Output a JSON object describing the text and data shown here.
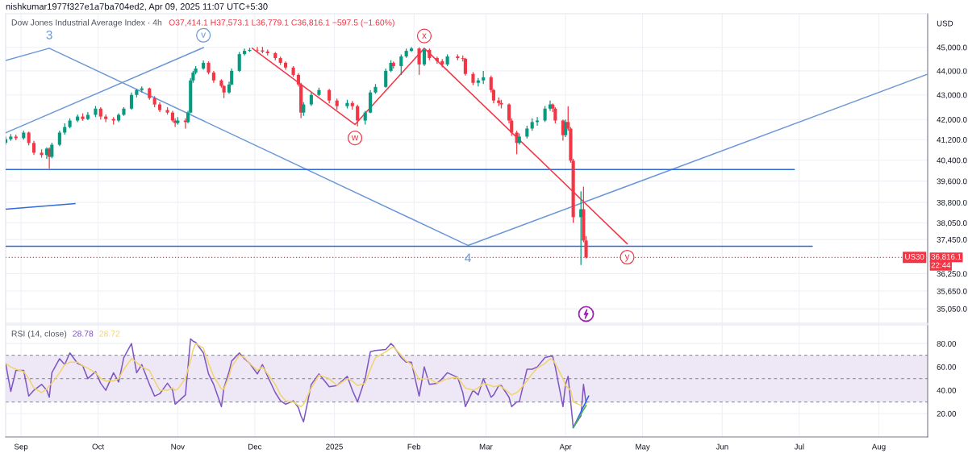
{
  "chart_data": [
    {
      "type": "candlestick",
      "title": "Dow Jones Industrial Average Index · 4h",
      "subtitle": "O37,414.1 H37,573.1 L36,779.1 C36,816.1 −597.5 (−1.60%)",
      "ylabel": "USD",
      "x": [
        "2024-08-26",
        "2024-08-28",
        "2024-08-30",
        "2024-09-02",
        "2024-09-04",
        "2024-09-06",
        "2024-09-09",
        "2024-09-11",
        "2024-09-12",
        "2024-09-13",
        "2024-09-16",
        "2024-09-18",
        "2024-09-20",
        "2024-09-23",
        "2024-09-25",
        "2024-09-27",
        "2024-09-30",
        "2024-10-02",
        "2024-10-04",
        "2024-10-07",
        "2024-10-09",
        "2024-10-11",
        "2024-10-14",
        "2024-10-16",
        "2024-10-18",
        "2024-10-21",
        "2024-10-23",
        "2024-10-25",
        "2024-10-28",
        "2024-10-30",
        "2024-10-31",
        "2024-11-01",
        "2024-11-04",
        "2024-11-05",
        "2024-11-06",
        "2024-11-07",
        "2024-11-08",
        "2024-11-11",
        "2024-11-13",
        "2024-11-15",
        "2024-11-18",
        "2024-11-19",
        "2024-11-21",
        "2024-11-22",
        "2024-11-25",
        "2024-11-27",
        "2024-11-29",
        "2024-12-02",
        "2024-12-04",
        "2024-12-06",
        "2024-12-09",
        "2024-12-11",
        "2024-12-13",
        "2024-12-16",
        "2024-12-18",
        "2024-12-19",
        "2024-12-20",
        "2024-12-23",
        "2024-12-26",
        "2024-12-30",
        "2025-01-02",
        "2025-01-06",
        "2025-01-08",
        "2025-01-10",
        "2025-01-13",
        "2025-01-15",
        "2025-01-17",
        "2025-01-21",
        "2025-01-23",
        "2025-01-24",
        "2025-01-27",
        "2025-01-29",
        "2025-01-31",
        "2025-02-03",
        "2025-02-05",
        "2025-02-07",
        "2025-02-10",
        "2025-02-12",
        "2025-02-14",
        "2025-02-18",
        "2025-02-20",
        "2025-02-21",
        "2025-02-24",
        "2025-02-26",
        "2025-02-28",
        "2025-03-03",
        "2025-03-04",
        "2025-03-06",
        "2025-03-07",
        "2025-03-10",
        "2025-03-11",
        "2025-03-13",
        "2025-03-14",
        "2025-03-17",
        "2025-03-19",
        "2025-03-21",
        "2025-03-24",
        "2025-03-26",
        "2025-03-27",
        "2025-03-28",
        "2025-03-31",
        "2025-04-01",
        "2025-04-02",
        "2025-04-03",
        "2025-04-04",
        "2025-04-07",
        "2025-04-08",
        "2025-04-09"
      ],
      "ohlc": [
        [
          41080,
          41320,
          41010,
          41220
        ],
        [
          41220,
          41420,
          41150,
          41320
        ],
        [
          41320,
          41400,
          41180,
          41260
        ],
        [
          41260,
          41560,
          41200,
          41480
        ],
        [
          41480,
          41520,
          40980,
          41070
        ],
        [
          41070,
          41150,
          40600,
          40690
        ],
        [
          40690,
          40820,
          40500,
          40600
        ],
        [
          40600,
          40900,
          40450,
          40850
        ],
        [
          40850,
          40900,
          40070,
          40530
        ],
        [
          40530,
          41080,
          40480,
          41000
        ],
        [
          41000,
          41560,
          40950,
          41480
        ],
        [
          41480,
          41850,
          41400,
          41700
        ],
        [
          41700,
          42050,
          41650,
          41960
        ],
        [
          41960,
          42200,
          41900,
          42120
        ],
        [
          42120,
          42250,
          41950,
          42020
        ],
        [
          42020,
          42300,
          41980,
          42190
        ],
        [
          42190,
          42550,
          42100,
          42440
        ],
        [
          42440,
          42500,
          42000,
          42120
        ],
        [
          42120,
          42200,
          41900,
          42020
        ],
        [
          42020,
          42100,
          41800,
          41960
        ],
        [
          41960,
          42250,
          41900,
          42190
        ],
        [
          42190,
          42500,
          42150,
          42440
        ],
        [
          42440,
          43100,
          42400,
          43000
        ],
        [
          43000,
          43250,
          42900,
          43200
        ],
        [
          43200,
          43350,
          43100,
          43270
        ],
        [
          43270,
          43300,
          42800,
          42870
        ],
        [
          42870,
          42950,
          42500,
          42610
        ],
        [
          42610,
          42700,
          42300,
          42380
        ],
        [
          42380,
          42500,
          42200,
          42280
        ],
        [
          42280,
          42350,
          41900,
          41960
        ],
        [
          41960,
          42050,
          41700,
          41860
        ],
        [
          41860,
          42100,
          41800,
          41960
        ],
        [
          41960,
          42050,
          41640,
          41900
        ],
        [
          41900,
          42350,
          41850,
          42280
        ],
        [
          42280,
          43700,
          42250,
          43600
        ],
        [
          43600,
          44000,
          43500,
          43930
        ],
        [
          43930,
          44200,
          43850,
          44100
        ],
        [
          44100,
          44440,
          44050,
          44340
        ],
        [
          44340,
          44400,
          43850,
          43930
        ],
        [
          43930,
          44000,
          43500,
          43600
        ],
        [
          43600,
          43650,
          43300,
          43370
        ],
        [
          43370,
          43400,
          42870,
          43100
        ],
        [
          43100,
          43550,
          43050,
          43430
        ],
        [
          43430,
          44100,
          43400,
          44000
        ],
        [
          44000,
          44800,
          43950,
          44710
        ],
        [
          44710,
          44950,
          44650,
          44850
        ],
        [
          44850,
          44980,
          44800,
          44890
        ],
        [
          44890,
          45020,
          44780,
          44870
        ],
        [
          44870,
          45020,
          44750,
          44820
        ],
        [
          44820,
          44900,
          44650,
          44750
        ],
        [
          44750,
          44800,
          44450,
          44540
        ],
        [
          44540,
          44600,
          44250,
          44340
        ],
        [
          44340,
          44400,
          44050,
          44140
        ],
        [
          44140,
          44200,
          43750,
          43830
        ],
        [
          43830,
          43900,
          43350,
          43430
        ],
        [
          43430,
          43500,
          42060,
          42280
        ],
        [
          42280,
          42700,
          42150,
          42610
        ],
        [
          42610,
          43100,
          42550,
          43000
        ],
        [
          43000,
          43300,
          42950,
          43200
        ],
        [
          43200,
          43250,
          42650,
          42770
        ],
        [
          42770,
          42850,
          42400,
          42540
        ],
        [
          42540,
          42800,
          42450,
          42670
        ],
        [
          42670,
          42750,
          42400,
          42540
        ],
        [
          42540,
          42600,
          41730,
          41960
        ],
        [
          41960,
          42350,
          41800,
          42280
        ],
        [
          42280,
          43200,
          42250,
          43100
        ],
        [
          43100,
          43450,
          43050,
          43330
        ],
        [
          43330,
          44100,
          43300,
          44000
        ],
        [
          44000,
          44450,
          43950,
          44340
        ],
        [
          44340,
          44400,
          44100,
          44200
        ],
        [
          44200,
          44700,
          43830,
          44610
        ],
        [
          44610,
          44950,
          44550,
          44850
        ],
        [
          44850,
          45020,
          44800,
          44950
        ],
        [
          44950,
          45000,
          43830,
          44270
        ],
        [
          44270,
          44960,
          44200,
          44890
        ],
        [
          44890,
          44950,
          44450,
          44540
        ],
        [
          44540,
          44600,
          44300,
          44410
        ],
        [
          44410,
          44500,
          44150,
          44270
        ],
        [
          44270,
          44700,
          44200,
          44610
        ],
        [
          44610,
          44700,
          44450,
          44540
        ],
        [
          44540,
          44650,
          44400,
          44510
        ],
        [
          44510,
          44550,
          43800,
          43870
        ],
        [
          43870,
          43950,
          43400,
          43500
        ],
        [
          43500,
          43700,
          43350,
          43600
        ],
        [
          43600,
          44000,
          43450,
          43730
        ],
        [
          43730,
          43800,
          43100,
          43200
        ],
        [
          43200,
          43250,
          42650,
          42770
        ],
        [
          42770,
          42900,
          42550,
          42670
        ],
        [
          42670,
          42800,
          42450,
          42610
        ],
        [
          42610,
          42650,
          41850,
          41960
        ],
        [
          41960,
          42050,
          41350,
          41480
        ],
        [
          41480,
          41550,
          40630,
          41070
        ],
        [
          41070,
          41450,
          41000,
          41320
        ],
        [
          41320,
          41750,
          41250,
          41640
        ],
        [
          41640,
          42050,
          41550,
          41900
        ],
        [
          41900,
          42100,
          41750,
          41960
        ],
        [
          41960,
          42550,
          41900,
          42440
        ],
        [
          42440,
          42770,
          42350,
          42610
        ],
        [
          42610,
          42650,
          42300,
          42440
        ],
        [
          42440,
          42500,
          41850,
          41960
        ],
        [
          41960,
          42000,
          41160,
          41380
        ],
        [
          41380,
          42000,
          41300,
          41900
        ],
        [
          41900,
          42540,
          41550,
          41640
        ],
        [
          41640,
          41700,
          40300,
          40380
        ],
        [
          40380,
          40450,
          38050,
          38260
        ],
        [
          38260,
          39220,
          36550,
          38550
        ],
        [
          38550,
          39390,
          37350,
          37414.1
        ],
        [
          37414.1,
          37573.1,
          36779.1,
          36816.1
        ]
      ],
      "colors": [
        "#089981",
        "#089981",
        "#f23645",
        "#089981",
        "#f23645",
        "#f23645",
        "#f23645",
        "#089981",
        "#f23645",
        "#089981",
        "#089981",
        "#089981",
        "#089981",
        "#089981",
        "#f23645",
        "#089981",
        "#089981",
        "#f23645",
        "#f23645",
        "#f23645",
        "#089981",
        "#089981",
        "#089981",
        "#089981",
        "#089981",
        "#f23645",
        "#f23645",
        "#f23645",
        "#f23645",
        "#f23645",
        "#f23645",
        "#089981",
        "#f23645",
        "#089981",
        "#089981",
        "#089981",
        "#089981",
        "#089981",
        "#f23645",
        "#f23645",
        "#f23645",
        "#f23645",
        "#089981",
        "#089981",
        "#089981",
        "#089981",
        "#089981",
        "#f23645",
        "#f23645",
        "#f23645",
        "#f23645",
        "#f23645",
        "#f23645",
        "#f23645",
        "#f23645",
        "#f23645",
        "#089981",
        "#089981",
        "#089981",
        "#f23645",
        "#f23645",
        "#089981",
        "#f23645",
        "#f23645",
        "#089981",
        "#089981",
        "#089981",
        "#089981",
        "#089981",
        "#f23645",
        "#089981",
        "#089981",
        "#089981",
        "#f23645",
        "#089981",
        "#f23645",
        "#f23645",
        "#f23645",
        "#089981",
        "#f23645",
        "#f23645",
        "#f23645",
        "#f23645",
        "#089981",
        "#089981",
        "#f23645",
        "#f23645",
        "#f23645",
        "#f23645",
        "#f23645",
        "#f23645",
        "#f23645",
        "#089981",
        "#089981",
        "#089981",
        "#089981",
        "#089981",
        "#089981",
        "#f23645",
        "#f23645",
        "#f23645",
        "#089981",
        "#f23645",
        "#f23645",
        "#f23645",
        "#089981",
        "#f23645",
        "#f23645"
      ],
      "series": [
        {
          "type": "line",
          "color": "#6b97d8",
          "x": [
            "2024-08-26",
            "2024-11-11"
          ],
          "values": [
            41470,
            44990
          ]
        },
        {
          "type": "line",
          "color": "#6b97d8",
          "x": [
            "2024-08-26",
            "2024-09-12",
            "2025-02-22",
            "2025-08-20"
          ],
          "values": [
            44440,
            44960,
            37240,
            43860
          ]
        },
        {
          "type": "line",
          "color": "#2f6bd9",
          "x": [
            "2024-08-26",
            "2024-09-22"
          ],
          "values": [
            38550,
            38760
          ]
        },
        {
          "type": "line",
          "color": "#2f6bd9",
          "x": [
            "2024-08-26",
            "2025-06-29"
          ],
          "values": [
            40040,
            40040
          ]
        },
        {
          "type": "line",
          "color": "#2f6bd9",
          "x": [
            "2024-08-26",
            "2025-07-06"
          ],
          "values": [
            37210,
            37210
          ]
        },
        {
          "type": "line",
          "color": "#f23645",
          "x": [
            "2024-11-30",
            "2025-01-09",
            "2025-02-05",
            "2025-04-25"
          ],
          "values": [
            44960,
            41800,
            44960,
            37300
          ]
        }
      ],
      "log": "y",
      "xlim": [
        "2024-08-26",
        "2025-08-20"
      ],
      "ylim": [
        34570,
        46470
      ],
      "xticks": [
        {
          "value": "2024-09-01",
          "label": null
        },
        {
          "value": "2024-10-01",
          "label": null
        },
        {
          "value": "2024-11-01",
          "label": null
        },
        {
          "value": "2024-12-01",
          "label": null
        },
        {
          "value": "2025-01-01",
          "label": null
        },
        {
          "value": "2025-02-01",
          "label": null
        },
        {
          "value": "2025-03-01",
          "label": null
        },
        {
          "value": "2025-04-01",
          "label": null
        },
        {
          "value": "2025-05-01",
          "label": null
        },
        {
          "value": "2025-06-01",
          "label": null
        },
        {
          "value": "2025-07-01",
          "label": null
        },
        {
          "value": "2025-08-01",
          "label": null
        }
      ],
      "yticks": [
        {
          "value": 45000,
          "label": "45,000.0"
        },
        {
          "value": 44000,
          "label": "44,000.0"
        },
        {
          "value": 43000,
          "label": "43,000.0"
        },
        {
          "value": 42000,
          "label": "42,000.0"
        },
        {
          "value": 41200,
          "label": "41,200.0"
        },
        {
          "value": 40400,
          "label": "40,400.0"
        },
        {
          "value": 39600,
          "label": "39,600.0"
        },
        {
          "value": 38800,
          "label": "38,800.0"
        },
        {
          "value": 38050,
          "label": "38,050.0"
        },
        {
          "value": 37450,
          "label": "37,450.0"
        },
        {
          "value": 36250,
          "label": "36,250.0"
        },
        {
          "value": 35650,
          "label": "35,650.0"
        },
        {
          "value": 35050,
          "label": "35,050.0"
        }
      ],
      "tick_labels": "y",
      "grid": true,
      "ref_lines": [
        {
          "axis": "y",
          "value": 36816.1,
          "label": "US30",
          "color": "#f23645",
          "line_style": "dotted"
        }
      ],
      "annotations": [
        "nishkumar1977f327e1a7ba704ed2, Apr 09, 2025 11:07 UTC+5:30",
        "36,816.1",
        "22:44",
        {
          "text": "3",
          "x": "2024-09-12",
          "y": 44960
        },
        {
          "text": "v",
          "x": "2024-11-11",
          "y": 44990
        },
        {
          "text": "w",
          "x": "2025-01-09",
          "y": 41800
        },
        {
          "text": "x",
          "x": "2025-02-05",
          "y": 44960
        },
        {
          "text": "4",
          "x": "2025-02-22",
          "y": 37240
        },
        {
          "text": "y",
          "x": "2025-04-25",
          "y": 37300
        }
      ]
    },
    {
      "type": "line",
      "title": "RSI (14, close)",
      "x": [
        "2024-08-26",
        "2024-08-28",
        "2024-08-30",
        "2024-09-02",
        "2024-09-04",
        "2024-09-06",
        "2024-09-09",
        "2024-09-11",
        "2024-09-12",
        "2024-09-13",
        "2024-09-16",
        "2024-09-18",
        "2024-09-20",
        "2024-09-23",
        "2024-09-25",
        "2024-09-27",
        "2024-09-30",
        "2024-10-02",
        "2024-10-04",
        "2024-10-07",
        "2024-10-09",
        "2024-10-11",
        "2024-10-14",
        "2024-10-16",
        "2024-10-18",
        "2024-10-21",
        "2024-10-23",
        "2024-10-25",
        "2024-10-28",
        "2024-10-30",
        "2024-10-31",
        "2024-11-01",
        "2024-11-04",
        "2024-11-05",
        "2024-11-06",
        "2024-11-07",
        "2024-11-08",
        "2024-11-11",
        "2024-11-13",
        "2024-11-15",
        "2024-11-18",
        "2024-11-19",
        "2024-11-21",
        "2024-11-22",
        "2024-11-25",
        "2024-11-27",
        "2024-11-29",
        "2024-12-02",
        "2024-12-04",
        "2024-12-06",
        "2024-12-09",
        "2024-12-11",
        "2024-12-13",
        "2024-12-16",
        "2024-12-18",
        "2024-12-19",
        "2024-12-20",
        "2024-12-23",
        "2024-12-26",
        "2024-12-30",
        "2025-01-02",
        "2025-01-06",
        "2025-01-08",
        "2025-01-10",
        "2025-01-13",
        "2025-01-15",
        "2025-01-17",
        "2025-01-21",
        "2025-01-23",
        "2025-01-24",
        "2025-01-27",
        "2025-01-29",
        "2025-01-31",
        "2025-02-03",
        "2025-02-05",
        "2025-02-07",
        "2025-02-10",
        "2025-02-12",
        "2025-02-14",
        "2025-02-18",
        "2025-02-20",
        "2025-02-21",
        "2025-02-24",
        "2025-02-26",
        "2025-02-28",
        "2025-03-03",
        "2025-03-04",
        "2025-03-06",
        "2025-03-07",
        "2025-03-10",
        "2025-03-11",
        "2025-03-13",
        "2025-03-14",
        "2025-03-17",
        "2025-03-19",
        "2025-03-21",
        "2025-03-24",
        "2025-03-26",
        "2025-03-27",
        "2025-03-28",
        "2025-03-31",
        "2025-04-01",
        "2025-04-02",
        "2025-04-03",
        "2025-04-04",
        "2025-04-07",
        "2025-04-08",
        "2025-04-09"
      ],
      "series": [
        {
          "color": "#7e57c2",
          "values": [
            63,
            39,
            57,
            57,
            35,
            40,
            45,
            40,
            34,
            55,
            67,
            62,
            72,
            63,
            61,
            50,
            56,
            46,
            40,
            55,
            47,
            68,
            80,
            55,
            62,
            45,
            35,
            37,
            46,
            40,
            28,
            30,
            36,
            60,
            84,
            82,
            81,
            72,
            54,
            45,
            26,
            42,
            56,
            65,
            72,
            67,
            63,
            54,
            62,
            52,
            38,
            31,
            28,
            31,
            25,
            18,
            13,
            45,
            54,
            43,
            44,
            52,
            40,
            30,
            50,
            73,
            74,
            75,
            80,
            78,
            68,
            64,
            64,
            35,
            60,
            45,
            46,
            50,
            55,
            51,
            38,
            26,
            40,
            36,
            50,
            34,
            36,
            44,
            44,
            34,
            26,
            30,
            30,
            58,
            58,
            60,
            68,
            69,
            69,
            60,
            26,
            45,
            52,
            30,
            8,
            18,
            45,
            29
          ]
        },
        {
          "color": "#f3d36b",
          "values": [
            63,
            60,
            58,
            56,
            50,
            42,
            38,
            41,
            44,
            46,
            55,
            62,
            64,
            64,
            61,
            59,
            55,
            50,
            48,
            48,
            50,
            58,
            67,
            64,
            60,
            57,
            48,
            40,
            40,
            42,
            40,
            41,
            50,
            58,
            65,
            75,
            80,
            76,
            63,
            52,
            41,
            41,
            52,
            60,
            70,
            68,
            63,
            57,
            60,
            54,
            45,
            36,
            31,
            30,
            27,
            26,
            28,
            42,
            53,
            50,
            44,
            50,
            48,
            44,
            46,
            58,
            68,
            73,
            76,
            77,
            70,
            65,
            62,
            49,
            50,
            50,
            46,
            48,
            50,
            51,
            45,
            42,
            40,
            42,
            46,
            44,
            43,
            44,
            43,
            38,
            36,
            38,
            40,
            48,
            54,
            59,
            63,
            67,
            66,
            63,
            50,
            44,
            42,
            40,
            30,
            27,
            26,
            29
          ]
        },
        {
          "color": "#2962ff",
          "x": [
            "2025-04-04",
            "2025-04-10"
          ],
          "values": [
            8,
            35
          ]
        },
        {
          "color": "#4caf50",
          "x": [
            "2025-04-04",
            "2025-04-09"
          ],
          "values": [
            8,
            27
          ]
        }
      ],
      "xlim": [
        "2024-08-26",
        "2025-08-20"
      ],
      "ylim": [
        0,
        96
      ],
      "xticks": [
        {
          "value": "2024-09-01",
          "label": "Sep"
        },
        {
          "value": "2024-10-01",
          "label": "Oct"
        },
        {
          "value": "2024-11-01",
          "label": "Nov"
        },
        {
          "value": "2024-12-01",
          "label": "Dec"
        },
        {
          "value": "2025-01-01",
          "label": "2025"
        },
        {
          "value": "2025-02-01",
          "label": "Feb"
        },
        {
          "value": "2025-03-01",
          "label": "Mar"
        },
        {
          "value": "2025-04-01",
          "label": "Apr"
        },
        {
          "value": "2025-05-01",
          "label": "May"
        },
        {
          "value": "2025-06-01",
          "label": "Jun"
        },
        {
          "value": "2025-07-01",
          "label": "Jul"
        },
        {
          "value": "2025-08-01",
          "label": "Aug"
        }
      ],
      "yticks": [
        {
          "value": 80,
          "label": "80.00"
        },
        {
          "value": 60,
          "label": "60.00"
        },
        {
          "value": 40,
          "label": "40.00"
        },
        {
          "value": 20,
          "label": "20.00"
        }
      ],
      "grid": true,
      "bands": [
        {
          "axis": "y",
          "from": 30,
          "to": 70,
          "color": "#ede7f6"
        }
      ],
      "ref_lines": [
        {
          "axis": "y",
          "value": 70,
          "color": "#9598a1",
          "line_style": "dashed"
        },
        {
          "axis": "y",
          "value": 50,
          "color": "#9598a1",
          "line_style": "dashed"
        },
        {
          "axis": "y",
          "value": 30,
          "color": "#9598a1",
          "line_style": "dashed"
        }
      ],
      "annotations": [
        "28.78",
        "28.72"
      ]
    }
  ]
}
